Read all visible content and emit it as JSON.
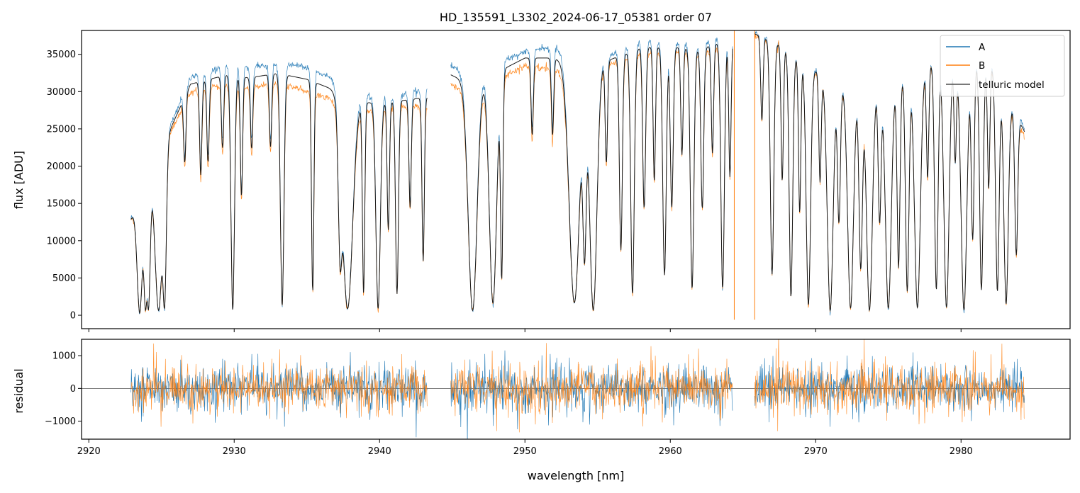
{
  "chart_data": {
    "type": "line",
    "title": "HD_135591_L3302_2024-06-17_05381  order 07",
    "xlabel": "wavelength [nm]",
    "xlim": [
      2919.5,
      2987.5
    ],
    "x_ticks": [
      2920,
      2930,
      2940,
      2950,
      2960,
      2970,
      2980
    ],
    "x_tick_labels": [
      "2920",
      "2930",
      "2940",
      "2950",
      "2960",
      "2970",
      "2980"
    ],
    "top_panel": {
      "ylabel": "flux [ADU]",
      "ylim": [
        -1800,
        38200
      ],
      "y_ticks": [
        0,
        5000,
        10000,
        15000,
        20000,
        25000,
        30000,
        35000
      ],
      "y_tick_labels": [
        "0",
        "5000",
        "10000",
        "15000",
        "20000",
        "25000",
        "30000",
        "35000"
      ],
      "legend_position": "upper-right",
      "legend": [
        "A",
        "B",
        "telluric model"
      ],
      "segments": [
        [
          2922.9,
          2943.3
        ],
        [
          2944.9,
          2964.3
        ],
        [
          2965.8,
          2984.4
        ]
      ],
      "continuum_points": {
        "x": [
          2922.9,
          2925.5,
          2927.0,
          2929.5,
          2931.0,
          2933.0,
          2935.0,
          2937.5,
          2939.0,
          2941.0,
          2943.3,
          2944.9,
          2946.0,
          2948.0,
          2950.0,
          2952.0,
          2954.0,
          2955.5,
          2958.0,
          2960.0,
          2962.0,
          2964.3,
          2965.8,
          2967.5,
          2970.0,
          2972.0,
          2975.0,
          2977.0,
          2979.0,
          2982.0,
          2984.4
        ],
        "a": [
          13000,
          25000,
          32000,
          33500,
          33200,
          33700,
          33300,
          31000,
          29500,
          29300,
          30500,
          33500,
          32500,
          33500,
          35500,
          36000,
          34000,
          34500,
          36800,
          36500,
          36200,
          38000,
          38000,
          36500,
          33000,
          31000,
          31500,
          33000,
          35000,
          34000,
          25000
        ],
        "b": [
          12800,
          24000,
          30000,
          31000,
          30500,
          31200,
          30000,
          28500,
          27500,
          28000,
          28000,
          31000,
          30000,
          31500,
          33500,
          33000,
          32000,
          33500,
          35000,
          35500,
          35000,
          36500,
          37500,
          36000,
          32500,
          30500,
          31000,
          32500,
          34500,
          33500,
          24000
        ]
      },
      "absorption_lines": {
        "center": [
          2923.5,
          2923.9,
          2924.1,
          2924.8,
          2925.2,
          2926.6,
          2927.7,
          2928.2,
          2929.2,
          2929.9,
          2930.5,
          2931.2,
          2932.5,
          2933.3,
          2935.4,
          2937.3,
          2937.8,
          2938.9,
          2939.9,
          2940.6,
          2941.2,
          2942.1,
          2943.0,
          2946.4,
          2947.8,
          2948.4,
          2950.5,
          2951.9,
          2953.4,
          2954.1,
          2954.7,
          2955.6,
          2956.6,
          2957.4,
          2958.2,
          2958.9,
          2959.6,
          2960.1,
          2960.8,
          2961.5,
          2962.2,
          2962.9,
          2963.6,
          2964.1,
          2966.3,
          2967.0,
          2967.7,
          2968.3,
          2968.9,
          2969.5,
          2970.3,
          2971.0,
          2971.6,
          2972.4,
          2973.1,
          2973.7,
          2974.4,
          2975.0,
          2975.7,
          2976.3,
          2977.0,
          2977.7,
          2978.3,
          2979.0,
          2979.6,
          2980.2,
          2980.8,
          2981.4,
          2981.9,
          2982.5,
          2983.1,
          2983.8
        ],
        "depth": [
          0.98,
          0.95,
          0.95,
          0.97,
          0.95,
          0.3,
          0.4,
          0.35,
          0.3,
          0.98,
          0.5,
          0.3,
          0.3,
          0.96,
          0.9,
          0.7,
          0.97,
          0.9,
          0.97,
          0.6,
          0.9,
          0.5,
          0.75,
          0.98,
          0.95,
          0.85,
          0.3,
          0.3,
          0.95,
          0.75,
          0.98,
          0.4,
          0.75,
          0.92,
          0.6,
          0.5,
          0.85,
          0.6,
          0.4,
          0.9,
          0.6,
          0.4,
          0.9,
          0.5,
          0.3,
          0.85,
          0.5,
          0.93,
          0.6,
          0.96,
          0.45,
          0.98,
          0.6,
          0.97,
          0.8,
          0.98,
          0.6,
          0.97,
          0.8,
          0.9,
          0.97,
          0.45,
          0.9,
          0.97,
          0.4,
          0.98,
          0.7,
          0.9,
          0.5,
          0.9,
          0.95,
          0.7
        ],
        "width": [
          0.18,
          0.12,
          0.12,
          0.25,
          0.12,
          0.08,
          0.08,
          0.08,
          0.08,
          0.12,
          0.08,
          0.08,
          0.08,
          0.12,
          0.08,
          0.12,
          0.35,
          0.08,
          0.15,
          0.08,
          0.1,
          0.08,
          0.08,
          0.3,
          0.25,
          0.08,
          0.08,
          0.08,
          0.35,
          0.12,
          0.25,
          0.08,
          0.1,
          0.12,
          0.1,
          0.08,
          0.12,
          0.1,
          0.08,
          0.12,
          0.1,
          0.08,
          0.12,
          0.08,
          0.08,
          0.12,
          0.08,
          0.12,
          0.08,
          0.15,
          0.08,
          0.2,
          0.1,
          0.2,
          0.12,
          0.2,
          0.1,
          0.2,
          0.1,
          0.12,
          0.2,
          0.08,
          0.12,
          0.18,
          0.08,
          0.2,
          0.1,
          0.12,
          0.08,
          0.12,
          0.15,
          0.1
        ]
      },
      "spikes": [
        2964.4,
        2965.8
      ]
    },
    "bottom_panel": {
      "ylabel": "residual",
      "ylim": [
        -1550,
        1500
      ],
      "y_ticks": [
        -1000,
        0,
        1000
      ],
      "y_tick_labels": [
        "−1000",
        "0",
        "1000"
      ],
      "zero_line": 0,
      "residual_noise_level": 350
    },
    "series": [
      {
        "name": "A",
        "color": "#1f77b4"
      },
      {
        "name": "B",
        "color": "#ff7f0e"
      },
      {
        "name": "telluric model",
        "color": "#4d4d4d"
      }
    ]
  }
}
